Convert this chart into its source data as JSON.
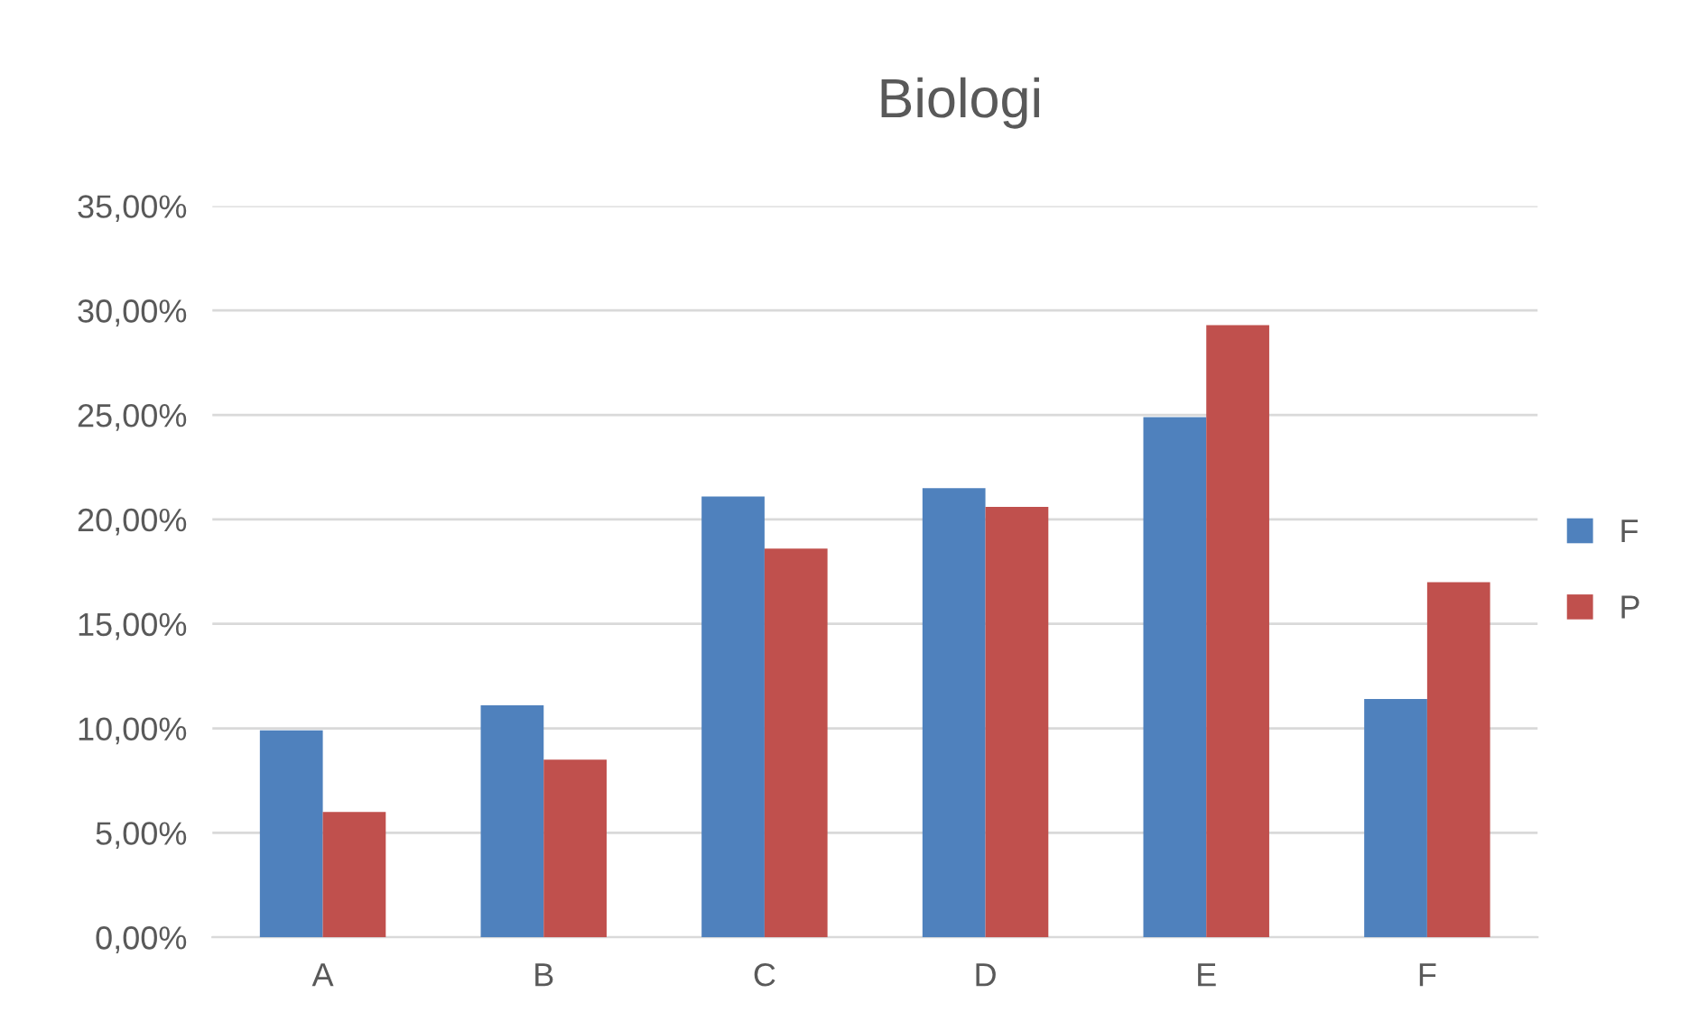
{
  "chart_data": {
    "type": "bar",
    "title": "Biologi",
    "categories": [
      "A",
      "B",
      "C",
      "D",
      "E",
      "F"
    ],
    "series": [
      {
        "name": "F",
        "color": "#4f81bd",
        "values": [
          9.9,
          11.1,
          21.1,
          21.5,
          24.9,
          11.4
        ]
      },
      {
        "name": "P",
        "color": "#c0504d",
        "values": [
          6.0,
          8.5,
          18.6,
          20.6,
          29.3,
          17.0
        ]
      }
    ],
    "ylim": [
      0,
      35
    ],
    "yticks": [
      {
        "value": 0,
        "label": "0,00%"
      },
      {
        "value": 5,
        "label": "5,00%"
      },
      {
        "value": 10,
        "label": "10,00%"
      },
      {
        "value": 15,
        "label": "15,00%"
      },
      {
        "value": 20,
        "label": "20,00%"
      },
      {
        "value": 25,
        "label": "25,00%"
      },
      {
        "value": 30,
        "label": "30,00%"
      },
      {
        "value": 35,
        "label": "35,00%"
      }
    ],
    "grid": "y",
    "legend": "right"
  }
}
